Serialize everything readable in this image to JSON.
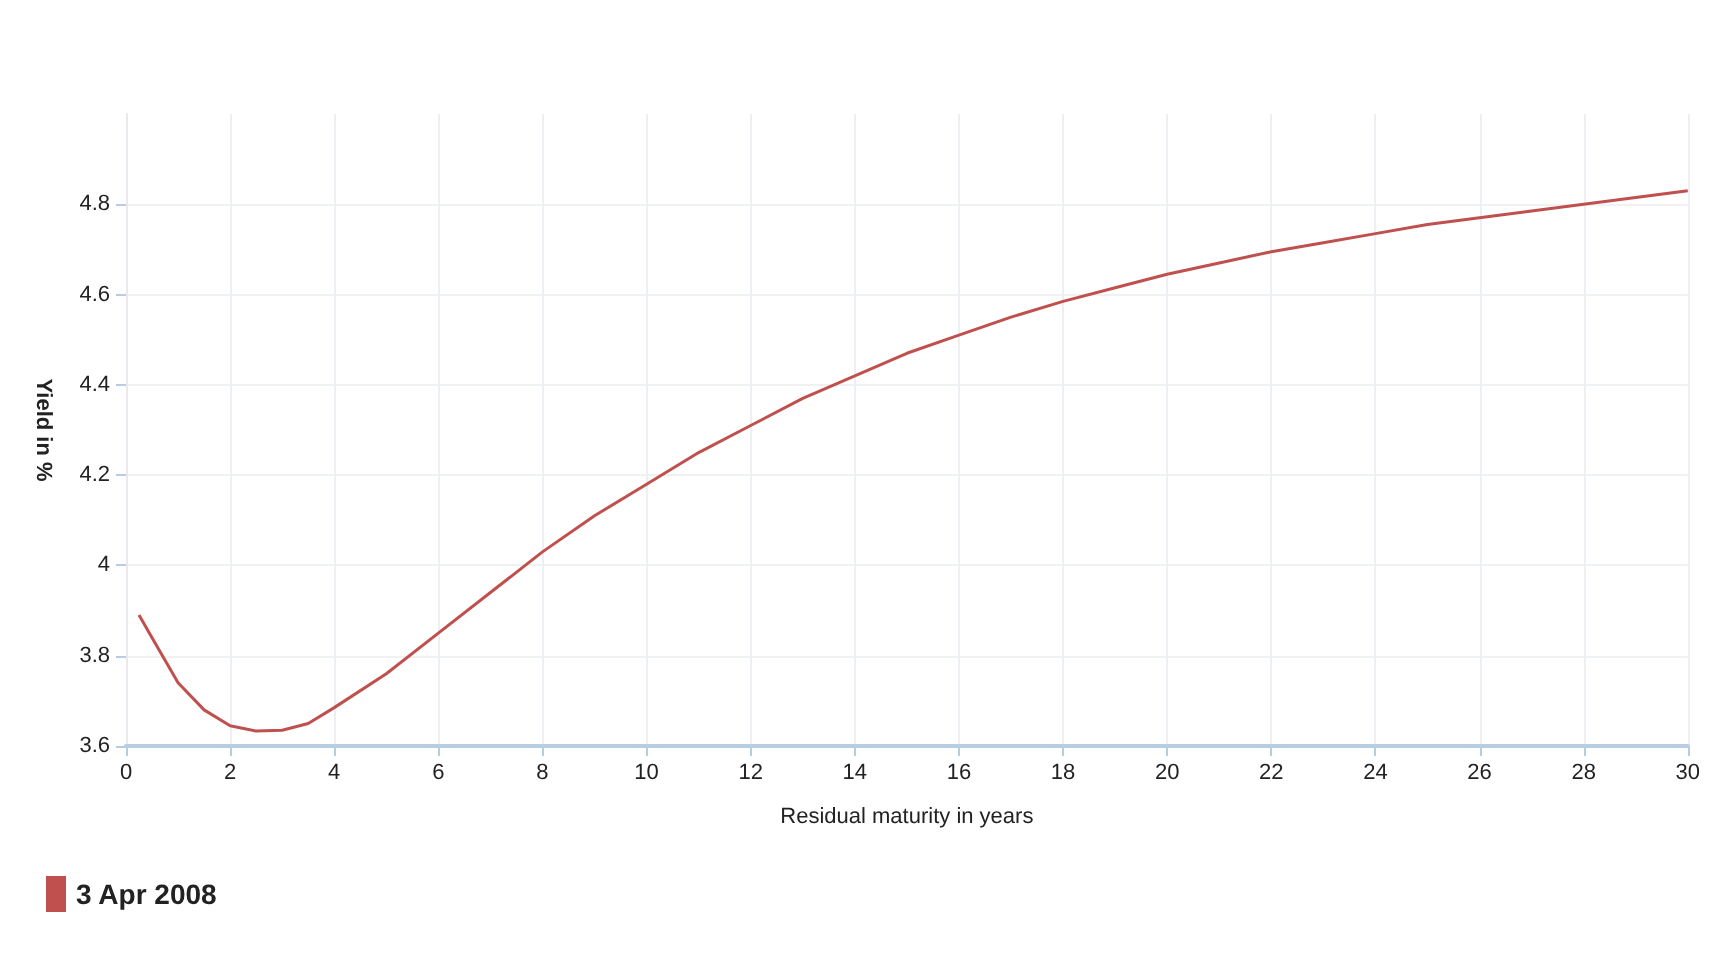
{
  "chart_data": {
    "type": "line",
    "xlabel": "Residual maturity in years",
    "ylabel": "Yield in %",
    "x": [
      0.25,
      0.5,
      1,
      1.5,
      2,
      2.5,
      3,
      3.5,
      4,
      5,
      6,
      7,
      8,
      9,
      10,
      11,
      12,
      13,
      14,
      15,
      16,
      17,
      18,
      19,
      20,
      21,
      22,
      23,
      24,
      25,
      26,
      27,
      28,
      29,
      30
    ],
    "series": [
      {
        "name": "3 Apr 2008",
        "color": "#c0504d",
        "values": [
          3.89,
          3.84,
          3.74,
          3.68,
          3.645,
          3.633,
          3.635,
          3.65,
          3.685,
          3.76,
          3.85,
          3.94,
          4.03,
          4.11,
          4.18,
          4.25,
          4.31,
          4.37,
          4.42,
          4.47,
          4.51,
          4.55,
          4.585,
          4.615,
          4.645,
          4.67,
          4.695,
          4.715,
          4.735,
          4.755,
          4.77,
          4.785,
          4.8,
          4.815,
          4.83
        ]
      }
    ],
    "xlim": [
      0,
      30
    ],
    "xticks": [
      0,
      2,
      4,
      6,
      8,
      10,
      12,
      14,
      16,
      18,
      20,
      22,
      24,
      26,
      28,
      30
    ],
    "ylim": [
      3.6,
      5.0
    ],
    "yticks": [
      3.6,
      3.8,
      4,
      4.2,
      4.4,
      4.6,
      4.8
    ],
    "grid": true,
    "legend": "bottom left",
    "marker": "none",
    "line_style": "solid"
  }
}
